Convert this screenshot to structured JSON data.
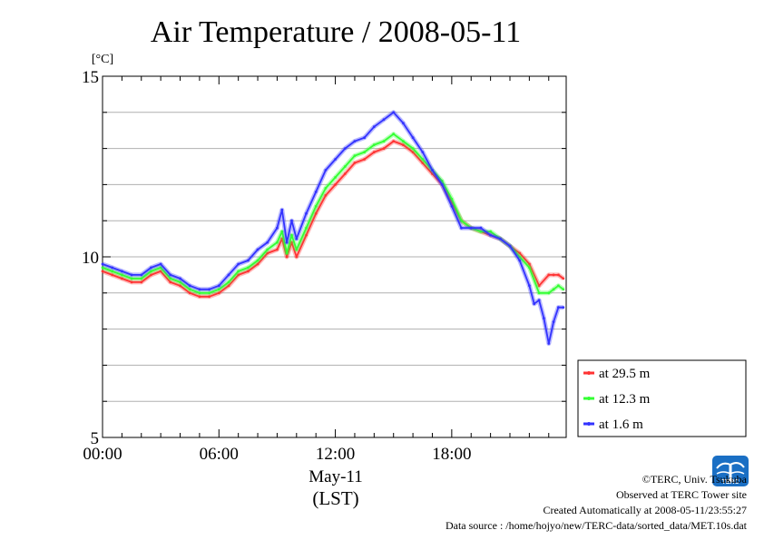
{
  "chart_data": {
    "type": "line",
    "title": "Air Temperature / 2008-05-11",
    "yunit": "[°C]",
    "ylim": [
      5,
      15
    ],
    "yticks": [
      5,
      10,
      15
    ],
    "xlim": [
      0,
      23.9
    ],
    "xticks": [
      {
        "hour": 0,
        "label": "00:00"
      },
      {
        "hour": 6,
        "label": "06:00"
      },
      {
        "hour": 12,
        "label": "12:00"
      },
      {
        "hour": 18,
        "label": "18:00"
      }
    ],
    "xlabel_date": "May-11",
    "xlabel_tz": "(LST)",
    "grid": "horizontal",
    "legend_position": "lower-right-outside",
    "series": [
      {
        "name": "at 29.5 m",
        "color": "#ff3333",
        "x": [
          0,
          0.5,
          1,
          1.5,
          2,
          2.5,
          3,
          3.5,
          4,
          4.5,
          5,
          5.5,
          6,
          6.5,
          7,
          7.5,
          8,
          8.5,
          9,
          9.25,
          9.5,
          9.75,
          10,
          10.5,
          11,
          11.5,
          12,
          12.5,
          13,
          13.5,
          14,
          14.5,
          15,
          15.5,
          16,
          16.5,
          17,
          17.5,
          18,
          18.5,
          19,
          19.5,
          20,
          20.5,
          21,
          21.5,
          22,
          22.5,
          23,
          23.25,
          23.5,
          23.75
        ],
        "values": [
          9.6,
          9.5,
          9.4,
          9.3,
          9.3,
          9.5,
          9.6,
          9.3,
          9.2,
          9.0,
          8.9,
          8.9,
          9.0,
          9.2,
          9.5,
          9.6,
          9.8,
          10.1,
          10.2,
          10.5,
          10.0,
          10.4,
          10.0,
          10.6,
          11.2,
          11.7,
          12.0,
          12.3,
          12.6,
          12.7,
          12.9,
          13.0,
          13.2,
          13.1,
          12.9,
          12.6,
          12.3,
          12.0,
          11.5,
          11.0,
          10.8,
          10.7,
          10.6,
          10.5,
          10.3,
          10.1,
          9.8,
          9.2,
          9.5,
          9.5,
          9.5,
          9.4
        ]
      },
      {
        "name": "at 12.3 m",
        "color": "#33ff33",
        "x": [
          0,
          0.5,
          1,
          1.5,
          2,
          2.5,
          3,
          3.5,
          4,
          4.5,
          5,
          5.5,
          6,
          6.5,
          7,
          7.5,
          8,
          8.5,
          9,
          9.25,
          9.5,
          9.75,
          10,
          10.5,
          11,
          11.5,
          12,
          12.5,
          13,
          13.5,
          14,
          14.5,
          15,
          15.5,
          16,
          16.5,
          17,
          17.5,
          18,
          18.5,
          19,
          19.5,
          20,
          20.5,
          21,
          21.5,
          22,
          22.5,
          23,
          23.25,
          23.5,
          23.75
        ],
        "values": [
          9.7,
          9.6,
          9.5,
          9.4,
          9.4,
          9.6,
          9.7,
          9.4,
          9.3,
          9.1,
          9.0,
          9.0,
          9.1,
          9.3,
          9.6,
          9.7,
          9.9,
          10.2,
          10.4,
          10.7,
          10.1,
          10.6,
          10.2,
          10.8,
          11.4,
          11.9,
          12.2,
          12.5,
          12.8,
          12.9,
          13.1,
          13.2,
          13.4,
          13.2,
          13.0,
          12.7,
          12.4,
          12.1,
          11.6,
          11.0,
          10.8,
          10.7,
          10.7,
          10.5,
          10.3,
          10.0,
          9.7,
          9.0,
          9.0,
          9.1,
          9.2,
          9.1
        ]
      },
      {
        "name": "at 1.6 m",
        "color": "#3333ff",
        "x": [
          0,
          0.5,
          1,
          1.5,
          2,
          2.5,
          3,
          3.5,
          4,
          4.5,
          5,
          5.5,
          6,
          6.5,
          7,
          7.5,
          8,
          8.5,
          9,
          9.25,
          9.5,
          9.75,
          10,
          10.5,
          11,
          11.5,
          12,
          12.5,
          13,
          13.5,
          14,
          14.5,
          15,
          15.5,
          16,
          16.5,
          17,
          17.5,
          18,
          18.5,
          19,
          19.5,
          20,
          20.5,
          21,
          21.5,
          22,
          22.25,
          22.5,
          22.75,
          23,
          23.25,
          23.5,
          23.75
        ],
        "values": [
          9.8,
          9.7,
          9.6,
          9.5,
          9.5,
          9.7,
          9.8,
          9.5,
          9.4,
          9.2,
          9.1,
          9.1,
          9.2,
          9.5,
          9.8,
          9.9,
          10.2,
          10.4,
          10.8,
          11.3,
          10.4,
          11.0,
          10.5,
          11.2,
          11.8,
          12.4,
          12.7,
          13.0,
          13.2,
          13.3,
          13.6,
          13.8,
          14.0,
          13.7,
          13.3,
          12.9,
          12.4,
          12.0,
          11.4,
          10.8,
          10.8,
          10.8,
          10.6,
          10.5,
          10.3,
          9.9,
          9.2,
          8.7,
          8.8,
          8.3,
          7.6,
          8.2,
          8.6,
          8.6
        ]
      }
    ]
  },
  "credits": {
    "copyright": "©TERC, Univ. Tsukuba",
    "site": "Observed at TERC Tower site",
    "created": "Created Automatically at 2008-05-11/23:55:27",
    "source": "Data source : /home/hojyo/new/TERC-data/sorted_data/MET.10s.dat"
  },
  "logo": {
    "text": "TERC",
    "color": "#1a6fc4"
  }
}
